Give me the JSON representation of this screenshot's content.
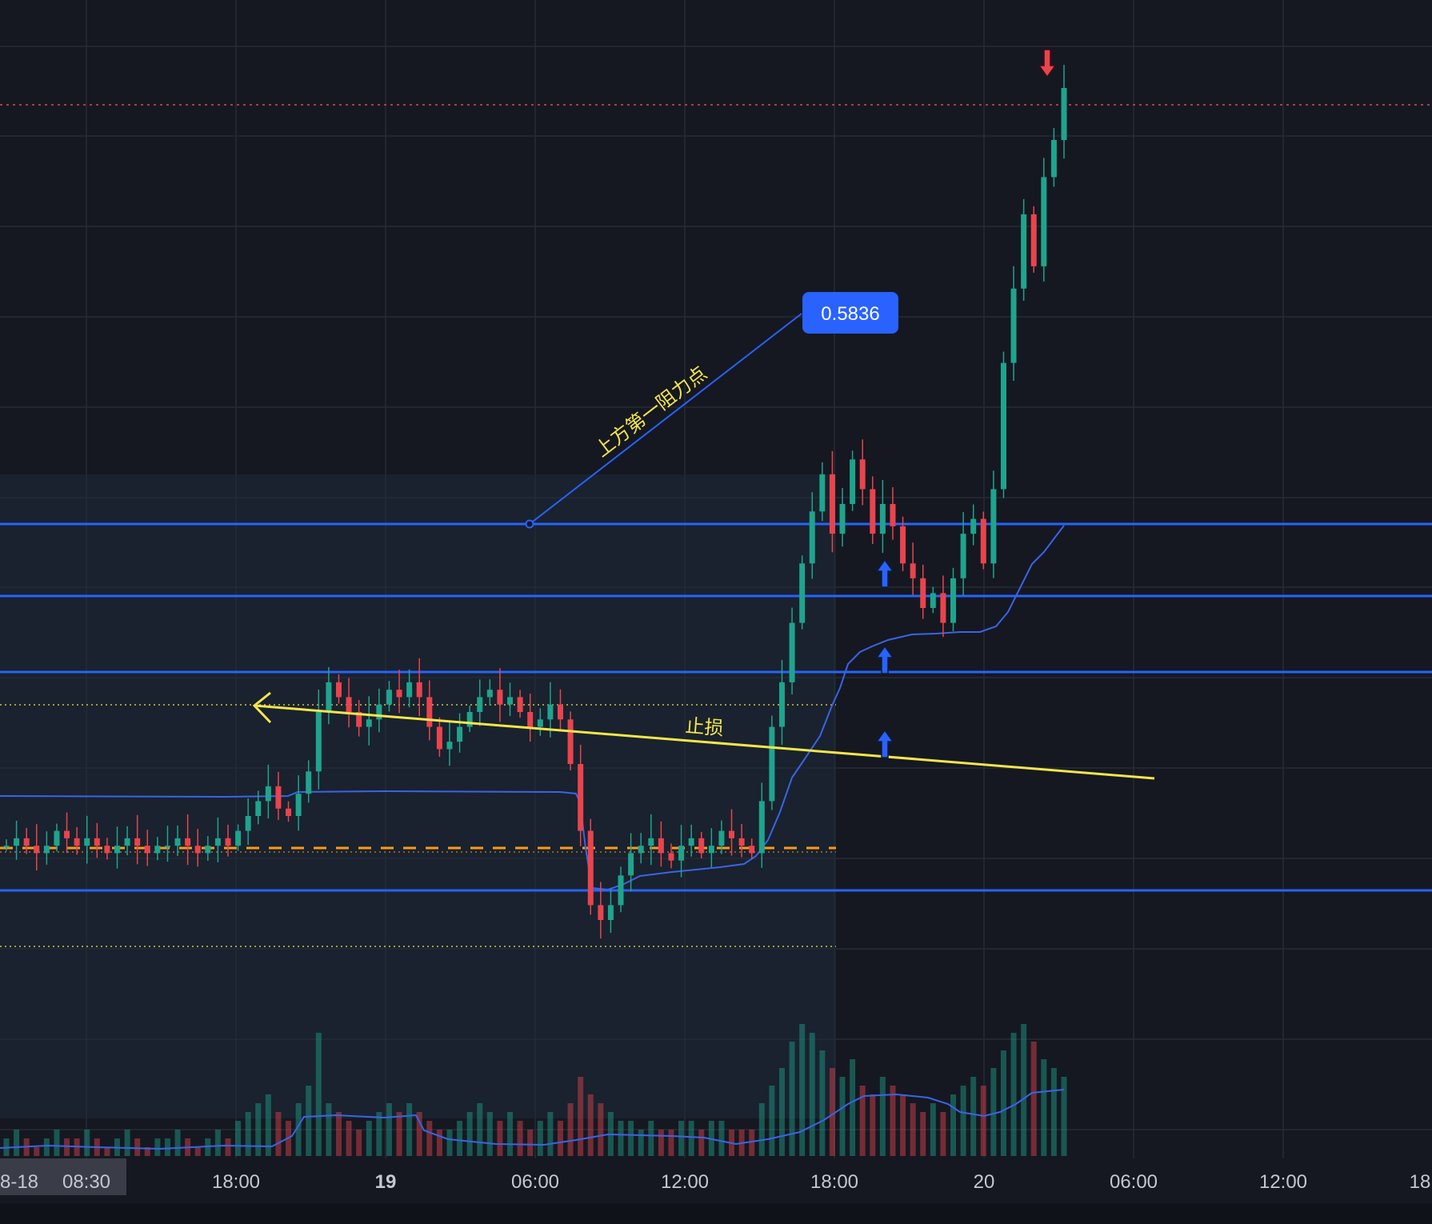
{
  "colors": {
    "background": "#151821",
    "grid": "#262a35",
    "up": "#1fa48e",
    "down": "#e9444e",
    "level_line": "#2962ff",
    "vwap": "#3b63e6",
    "annotation": "#f4e64a",
    "orange_dashed": "#f79a1e",
    "price_tag": "#2962ff",
    "red_dotted": "#e9444e",
    "zone_fill": "#1a2330"
  },
  "x_axis": {
    "ticks": [
      {
        "label": "8-18",
        "bold": false
      },
      {
        "label": "08:30",
        "bold": false
      },
      {
        "label": "18:00",
        "bold": false
      },
      {
        "label": "19",
        "bold": true
      },
      {
        "label": "06:00",
        "bold": false
      },
      {
        "label": "12:00",
        "bold": false
      },
      {
        "label": "18:00",
        "bold": false
      },
      {
        "label": "20",
        "bold": false
      },
      {
        "label": "06:00",
        "bold": false
      },
      {
        "label": "12:00",
        "bold": false
      },
      {
        "label": "18",
        "bold": false
      }
    ]
  },
  "annotations": {
    "resistance_label": "上方第一阻力点",
    "stop_loss_label": "止损",
    "price_tag": "0.5836"
  },
  "icons": {
    "buy_arrow": "up-arrow-icon",
    "sell_arrow": "down-arrow-icon",
    "back_arrow": "chevron-left-icon"
  },
  "chart_data": {
    "type": "candlestick",
    "title": "",
    "price_tag_value": 0.5836,
    "horizontal_levels": [
      0.5836
    ],
    "candles_note": "",
    "series": [
      {
        "name": "",
        "values": [
          0.2,
          0.21,
          0.2,
          0.19,
          0.2,
          0.22,
          0.21,
          0.2,
          0.21,
          0.2,
          0.19,
          0.2,
          0.21,
          0.2,
          0.19,
          0.2,
          0.2,
          0.21,
          0.2,
          0.19,
          0.2,
          0.21,
          0.2,
          0.22,
          0.24,
          0.26,
          0.28,
          0.25,
          0.24,
          0.27,
          0.3,
          0.38,
          0.42,
          0.4,
          0.38,
          0.36,
          0.37,
          0.39,
          0.41,
          0.4,
          0.42,
          0.4,
          0.36,
          0.33,
          0.34,
          0.36,
          0.38,
          0.4,
          0.41,
          0.39,
          0.4,
          0.38,
          0.36,
          0.37,
          0.39,
          0.37,
          0.31,
          0.22,
          0.12,
          0.1,
          0.12,
          0.16,
          0.19,
          0.2,
          0.21,
          0.19,
          0.18,
          0.2,
          0.21,
          0.19,
          0.2,
          0.22,
          0.21,
          0.2,
          0.19,
          0.26,
          0.36,
          0.42,
          0.5,
          0.58,
          0.65,
          0.7,
          0.62,
          0.66,
          0.72,
          0.68,
          0.62,
          0.66,
          0.63,
          0.58,
          0.56,
          0.52,
          0.54,
          0.5,
          0.56,
          0.62,
          0.64,
          0.58,
          0.68,
          0.85,
          0.95,
          1.05,
          0.98,
          1.1,
          1.15,
          1.22
        ]
      }
    ],
    "volume": [
      2,
      3,
      2,
      1,
      2,
      3,
      2,
      2,
      3,
      2,
      1,
      2,
      3,
      2,
      1,
      2,
      2,
      3,
      2,
      1,
      2,
      3,
      2,
      4,
      5,
      6,
      7,
      5,
      4,
      6,
      8,
      14,
      6,
      5,
      4,
      3,
      4,
      5,
      6,
      5,
      6,
      5,
      4,
      3,
      3,
      4,
      5,
      6,
      5,
      4,
      5,
      4,
      3,
      4,
      5,
      4,
      6,
      9,
      7,
      6,
      5,
      4,
      4,
      3,
      4,
      3,
      3,
      4,
      4,
      3,
      4,
      4,
      3,
      3,
      3,
      6,
      8,
      10,
      13,
      15,
      14,
      12,
      10,
      9,
      11,
      8,
      7,
      9,
      8,
      7,
      6,
      5,
      6,
      5,
      7,
      8,
      9,
      8,
      10,
      12,
      14,
      15,
      13,
      11,
      10,
      9
    ]
  }
}
